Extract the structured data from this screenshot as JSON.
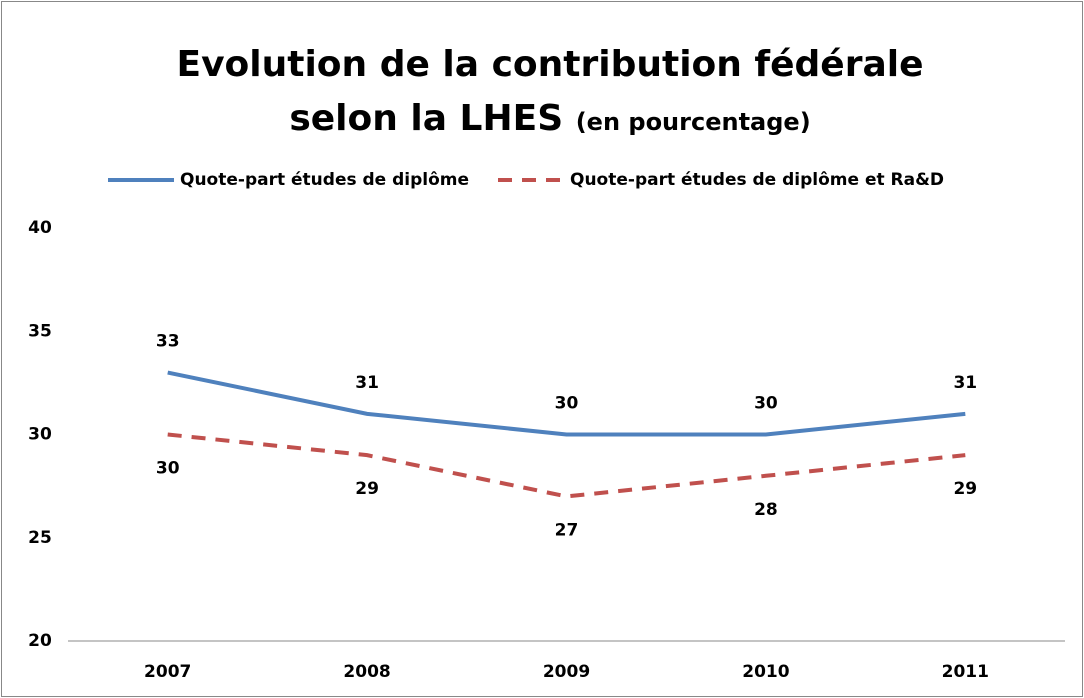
{
  "chart_data": {
    "type": "line",
    "title": "Evolution de la contribution fédérale selon la LHES",
    "subtitle": "(en pourcentage)",
    "categories": [
      "2007",
      "2008",
      "2009",
      "2010",
      "2011"
    ],
    "series": [
      {
        "name": "Quote-part études de diplôme",
        "color": "#4f81bd",
        "dash": false,
        "values": [
          33,
          31,
          30,
          30,
          31
        ]
      },
      {
        "name": "Quote-part études de diplôme et Ra&D",
        "color": "#c0504d",
        "dash": true,
        "values": [
          30,
          29,
          27,
          28,
          29
        ]
      }
    ],
    "ylim": [
      20,
      40
    ],
    "yticks": [
      20,
      25,
      30,
      35,
      40
    ],
    "grid": false,
    "legend": "top"
  }
}
